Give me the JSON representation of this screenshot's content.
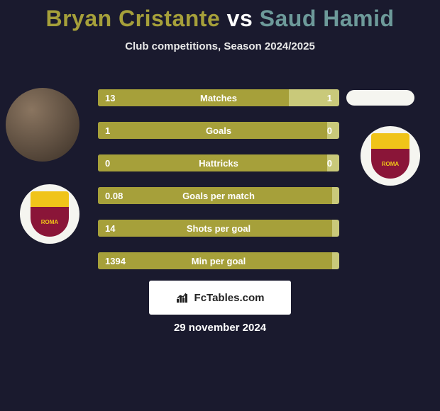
{
  "title": {
    "player1": "Bryan Cristante",
    "vs": "vs",
    "player2": "Saud Hamid",
    "color_player1": "#a6a03a",
    "color_vs": "#ffffff",
    "color_player2": "#6d9a9a"
  },
  "subtitle": "Club competitions, Season 2024/2025",
  "stats": {
    "bar_color_left": "#a6a03a",
    "bar_color_right": "#c9c97a",
    "rows": [
      {
        "label": "Matches",
        "left_val": "13",
        "right_val": "1",
        "left_pct": 79
      },
      {
        "label": "Goals",
        "left_val": "1",
        "right_val": "0",
        "left_pct": 100
      },
      {
        "label": "Hattricks",
        "left_val": "0",
        "right_val": "0",
        "left_pct": 100
      },
      {
        "label": "Goals per match",
        "left_val": "0.08",
        "right_val": "",
        "left_pct": 100
      },
      {
        "label": "Shots per goal",
        "left_val": "14",
        "right_val": "",
        "left_pct": 100
      },
      {
        "label": "Min per goal",
        "left_val": "1394",
        "right_val": "",
        "left_pct": 100
      }
    ]
  },
  "club": {
    "shield_text": "ROMA"
  },
  "footer": {
    "brand": "FcTables.com"
  },
  "date": "29 november 2024",
  "colors": {
    "background": "#1a1a2e",
    "text": "#ffffff",
    "badge_bg": "#f5f5f0",
    "roma_top": "#f0c419",
    "roma_bottom": "#8a1538"
  }
}
